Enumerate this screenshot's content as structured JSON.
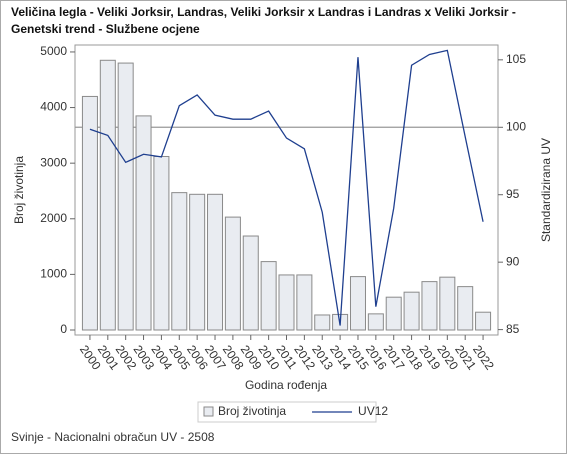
{
  "chart_data": {
    "type": "bar_line",
    "title": [
      "Veličina legla - Veliki Jorksir, Landras, Veliki Jorksir x Landras i Landras x Veliki Jorksir -",
      "Genetski trend - Službene ocjene"
    ],
    "footnote": "Svinje - Nacionalni obračun UV - 2508",
    "x_label": "Godina rođenja",
    "y_label": "Broj životinja",
    "y2_label": "Standardizirana UV",
    "categories": [
      "2000",
      "2001",
      "2002",
      "2003",
      "2004",
      "2005",
      "2006",
      "2007",
      "2008",
      "2009",
      "2010",
      "2011",
      "2012",
      "2013",
      "2014",
      "2015",
      "2016",
      "2017",
      "2018",
      "2019",
      "2020",
      "2021",
      "2022"
    ],
    "series": [
      {
        "name": "Broj životinja",
        "type": "bar",
        "color": "#e9ecf1",
        "values": [
          4200,
          4850,
          4800,
          3850,
          3120,
          2470,
          2440,
          2440,
          2030,
          1690,
          1230,
          990,
          990,
          270,
          280,
          960,
          290,
          590,
          680,
          870,
          950,
          780,
          320
        ]
      },
      {
        "name": "UV12",
        "type": "line",
        "axis": "y2",
        "color": "#1f3f8f",
        "values": [
          99.85,
          99.4,
          97.4,
          98.0,
          97.8,
          101.6,
          102.4,
          100.9,
          100.6,
          100.6,
          101.2,
          99.2,
          98.4,
          93.7,
          85.3,
          105.2,
          86.7,
          94.0,
          104.6,
          105.4,
          105.7,
          99.3,
          93.0
        ]
      }
    ],
    "ylim": [
      -90,
      5125
    ],
    "yticks": [
      0,
      1000,
      2000,
      3000,
      4000,
      5000
    ],
    "y2lim": [
      84.6,
      106.1
    ],
    "y2ticks": [
      85,
      90,
      95,
      100,
      105
    ],
    "reference_line": 100,
    "legend": "bottom"
  }
}
